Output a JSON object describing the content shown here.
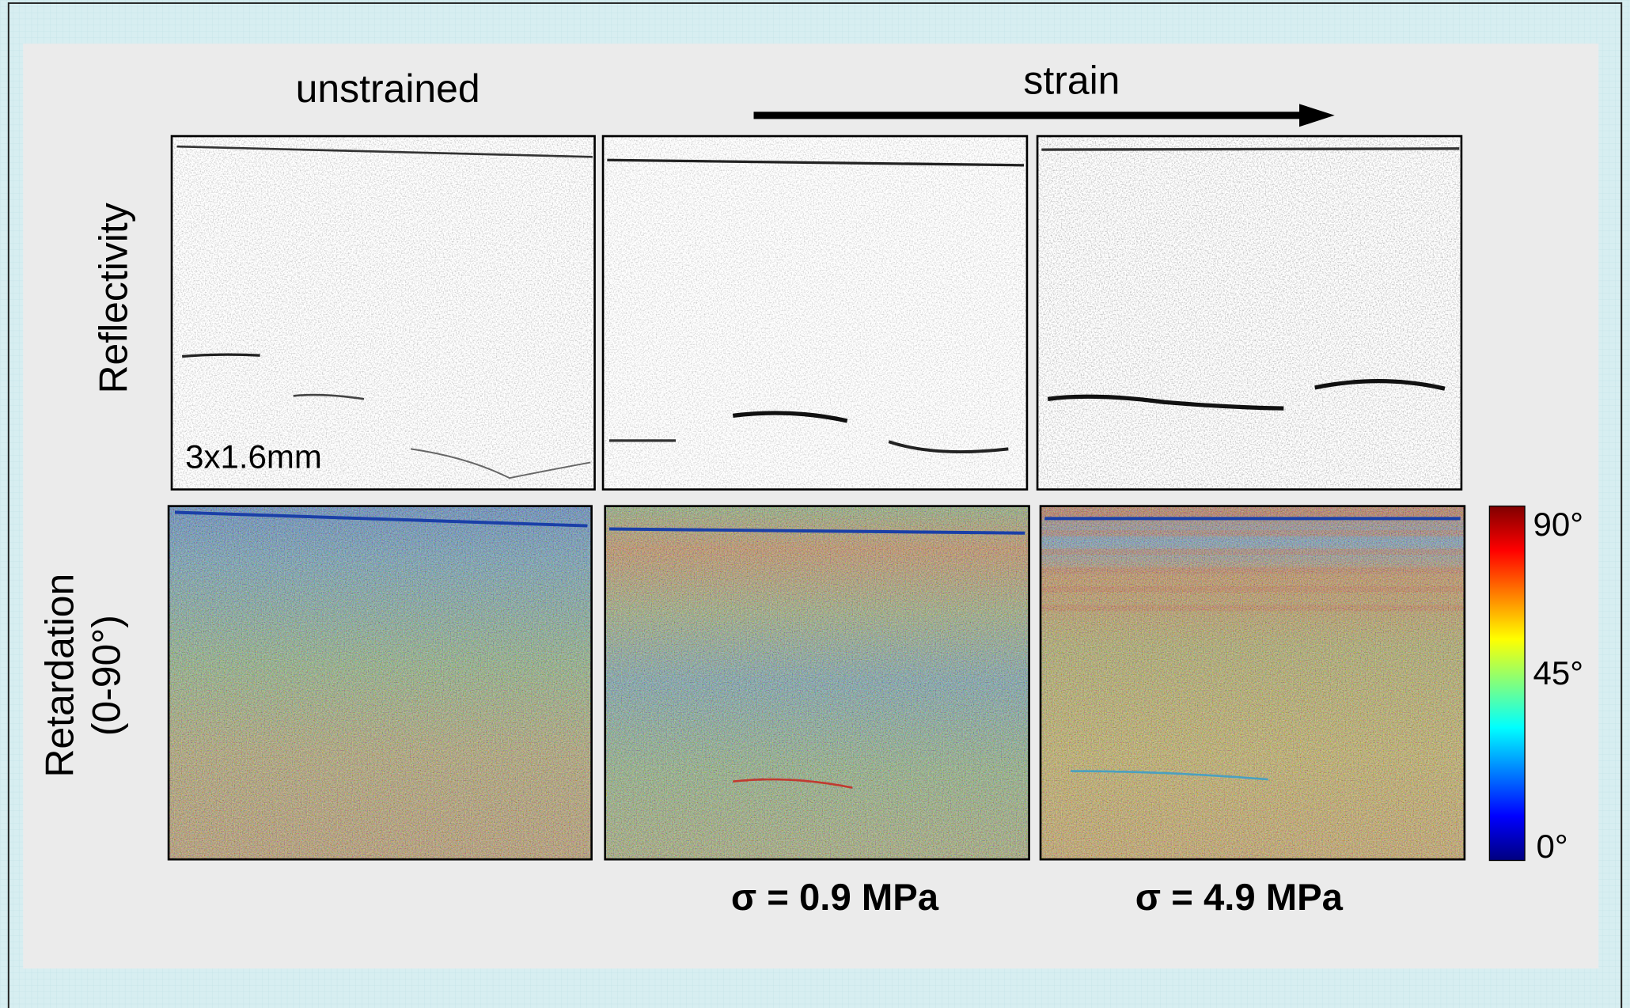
{
  "header": {
    "column_labels": [
      "unstrained",
      "strain"
    ]
  },
  "rows": {
    "labels": [
      "Reflectivity",
      "Retardation",
      "(0-90°)"
    ]
  },
  "annotations": {
    "scale": "3x1.6mm",
    "stress": [
      "σ = 0.9 MPa",
      "σ = 4.9 MPa"
    ]
  },
  "colorbar": {
    "labels": [
      "90°",
      "45°",
      "0°"
    ]
  }
}
